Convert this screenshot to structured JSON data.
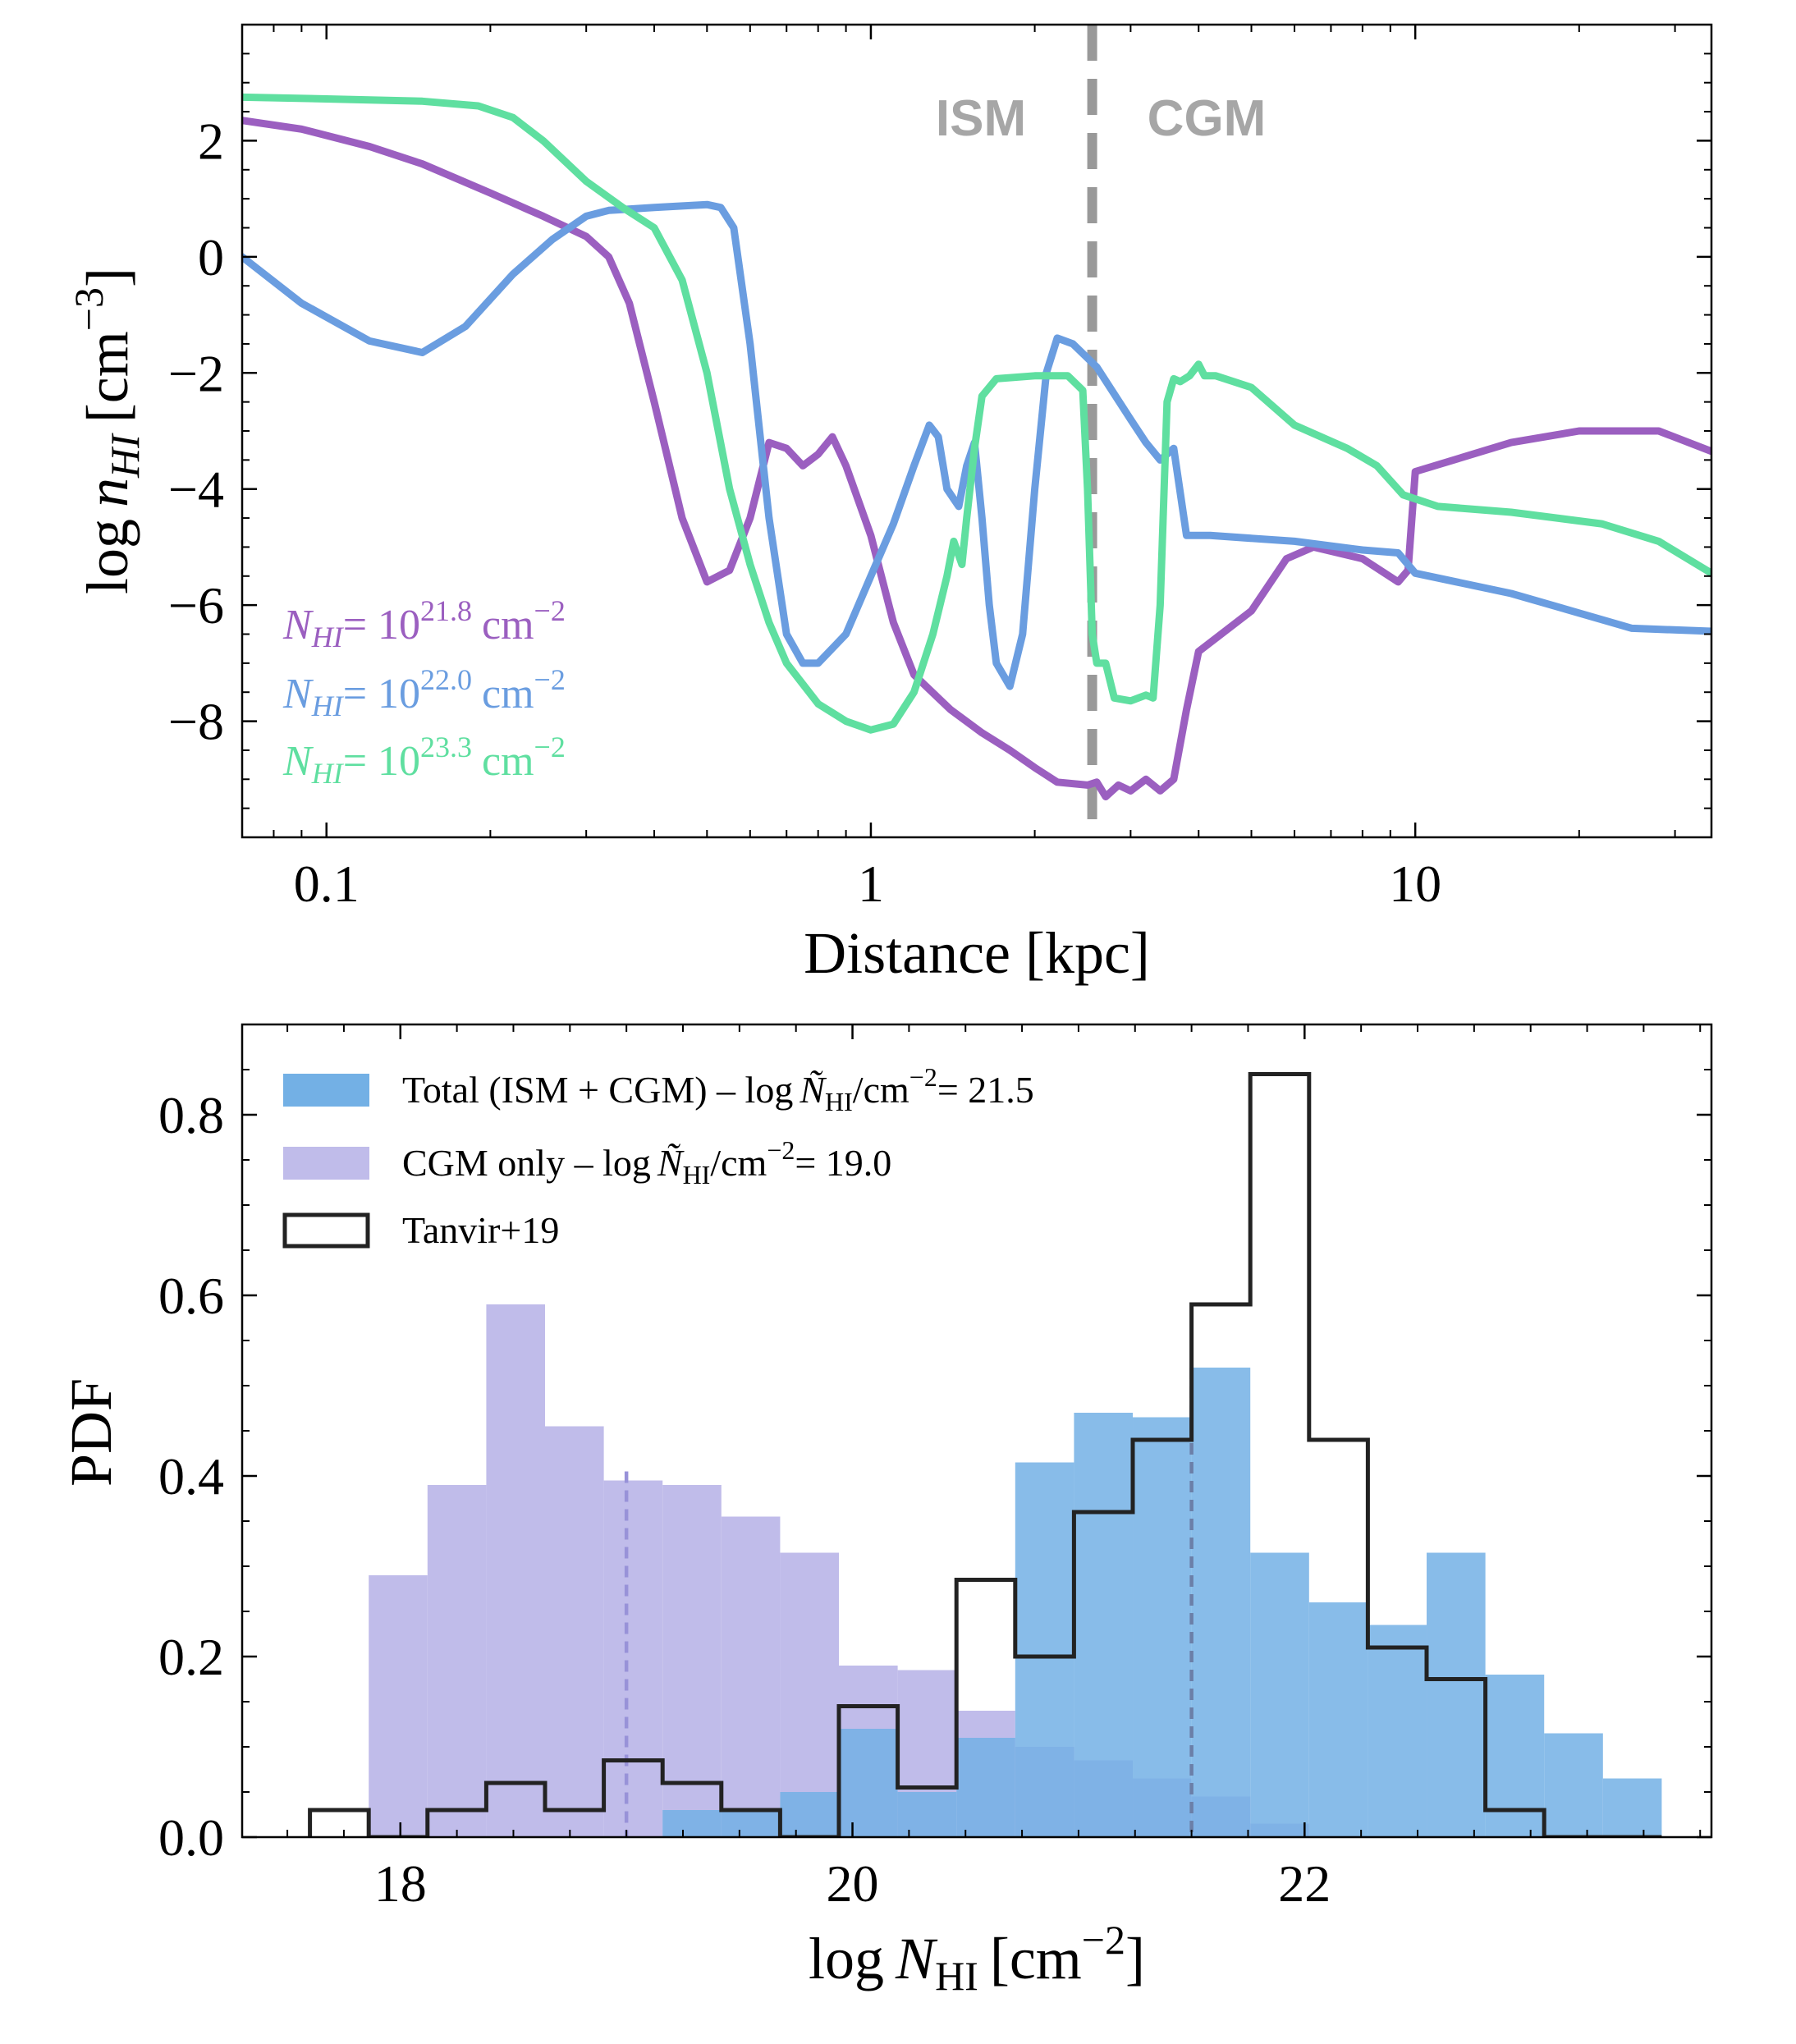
{
  "chart_data": [
    {
      "type": "line",
      "xscale": "log",
      "xlim": [
        0.07,
        35
      ],
      "ylim": [
        -10,
        4
      ],
      "xlabel": "Distance [kpc]",
      "ylabel_text": "log",
      "ylabel_var": "n",
      "ylabel_sub": "HI",
      "ylabel_unit": "[cm",
      "ylabel_exp": "−3",
      "ylabel_close": "]",
      "xticks": [
        0.1,
        1,
        10
      ],
      "xtick_labels": [
        "0.1",
        "1",
        "10"
      ],
      "yticks": [
        -8,
        -6,
        -4,
        -2,
        0,
        2
      ],
      "ytick_labels": [
        "−8",
        "−6",
        "−4",
        "−2",
        "0",
        "2"
      ],
      "divider": {
        "x": 2.55,
        "color": "#999999",
        "left_label": "ISM",
        "right_label": "CGM"
      },
      "legend_unit": "cm",
      "legend_unit_exp": "−2",
      "series": [
        {
          "name": "N_HI = 10^21.8 cm^-2",
          "var": "N",
          "sub": "HI",
          "eq": "= 10",
          "exp": "21.8",
          "color": "#9b5fc0",
          "points": [
            [
              0.07,
              2.35
            ],
            [
              0.09,
              2.2
            ],
            [
              0.12,
              1.9
            ],
            [
              0.15,
              1.6
            ],
            [
              0.2,
              1.1
            ],
            [
              0.25,
              0.7
            ],
            [
              0.3,
              0.35
            ],
            [
              0.33,
              0
            ],
            [
              0.36,
              -0.8
            ],
            [
              0.4,
              -2.5
            ],
            [
              0.45,
              -4.5
            ],
            [
              0.5,
              -5.6
            ],
            [
              0.55,
              -5.4
            ],
            [
              0.6,
              -4.5
            ],
            [
              0.65,
              -3.2
            ],
            [
              0.7,
              -3.3
            ],
            [
              0.75,
              -3.6
            ],
            [
              0.8,
              -3.4
            ],
            [
              0.85,
              -3.1
            ],
            [
              0.9,
              -3.6
            ],
            [
              1.0,
              -4.8
            ],
            [
              1.1,
              -6.3
            ],
            [
              1.2,
              -7.2
            ],
            [
              1.4,
              -7.8
            ],
            [
              1.6,
              -8.2
            ],
            [
              1.8,
              -8.5
            ],
            [
              2.0,
              -8.8
            ],
            [
              2.2,
              -9.05
            ],
            [
              2.5,
              -9.1
            ],
            [
              2.6,
              -9.05
            ],
            [
              2.7,
              -9.3
            ],
            [
              2.85,
              -9.1
            ],
            [
              3.0,
              -9.2
            ],
            [
              3.2,
              -9.0
            ],
            [
              3.4,
              -9.2
            ],
            [
              3.6,
              -9.0
            ],
            [
              3.8,
              -7.8
            ],
            [
              4.0,
              -6.8
            ],
            [
              5.0,
              -6.1
            ],
            [
              5.8,
              -5.2
            ],
            [
              6.5,
              -5.0
            ],
            [
              8.0,
              -5.2
            ],
            [
              9.3,
              -5.6
            ],
            [
              9.7,
              -5.4
            ],
            [
              10.0,
              -3.7
            ],
            [
              15.0,
              -3.2
            ],
            [
              20.0,
              -3.0
            ],
            [
              28.0,
              -3.0
            ],
            [
              35.0,
              -3.35
            ]
          ]
        },
        {
          "name": "N_HI = 10^22.0 cm^-2",
          "var": "N",
          "sub": "HI",
          "eq": "= 10",
          "exp": "22.0",
          "color": "#6a9de0",
          "points": [
            [
              0.07,
              0
            ],
            [
              0.09,
              -0.8
            ],
            [
              0.12,
              -1.45
            ],
            [
              0.15,
              -1.65
            ],
            [
              0.18,
              -1.2
            ],
            [
              0.22,
              -0.3
            ],
            [
              0.26,
              0.3
            ],
            [
              0.3,
              0.7
            ],
            [
              0.33,
              0.8
            ],
            [
              0.4,
              0.85
            ],
            [
              0.5,
              0.9
            ],
            [
              0.53,
              0.85
            ],
            [
              0.56,
              0.5
            ],
            [
              0.6,
              -1.5
            ],
            [
              0.65,
              -4.5
            ],
            [
              0.7,
              -6.5
            ],
            [
              0.75,
              -7
            ],
            [
              0.8,
              -7
            ],
            [
              0.9,
              -6.5
            ],
            [
              1.0,
              -5.5
            ],
            [
              1.1,
              -4.6
            ],
            [
              1.2,
              -3.6
            ],
            [
              1.28,
              -2.9
            ],
            [
              1.33,
              -3.1
            ],
            [
              1.38,
              -4.0
            ],
            [
              1.45,
              -4.3
            ],
            [
              1.5,
              -3.6
            ],
            [
              1.55,
              -3.2
            ],
            [
              1.6,
              -4.5
            ],
            [
              1.65,
              -6
            ],
            [
              1.7,
              -7
            ],
            [
              1.8,
              -7.4
            ],
            [
              1.9,
              -6.5
            ],
            [
              2.0,
              -4
            ],
            [
              2.1,
              -2.0
            ],
            [
              2.2,
              -1.4
            ],
            [
              2.35,
              -1.5
            ],
            [
              2.6,
              -1.9
            ],
            [
              3.0,
              -2.8
            ],
            [
              3.2,
              -3.2
            ],
            [
              3.4,
              -3.5
            ],
            [
              3.6,
              -3.3
            ],
            [
              3.8,
              -4.8
            ],
            [
              4.2,
              -4.8
            ],
            [
              6.0,
              -4.9
            ],
            [
              8.0,
              -5.05
            ],
            [
              9.3,
              -5.1
            ],
            [
              10.0,
              -5.45
            ],
            [
              15.0,
              -5.8
            ],
            [
              25.0,
              -6.4
            ],
            [
              35.0,
              -6.45
            ]
          ]
        },
        {
          "name": "N_HI = 10^23.3 cm^-2",
          "var": "N",
          "sub": "HI",
          "eq": "= 10",
          "exp": "23.3",
          "color": "#5fdfa0",
          "points": [
            [
              0.07,
              2.75
            ],
            [
              0.1,
              2.72
            ],
            [
              0.15,
              2.68
            ],
            [
              0.19,
              2.6
            ],
            [
              0.22,
              2.4
            ],
            [
              0.25,
              2.0
            ],
            [
              0.3,
              1.3
            ],
            [
              0.35,
              0.85
            ],
            [
              0.4,
              0.5
            ],
            [
              0.45,
              -0.4
            ],
            [
              0.5,
              -2.0
            ],
            [
              0.55,
              -4.0
            ],
            [
              0.6,
              -5.3
            ],
            [
              0.65,
              -6.3
            ],
            [
              0.7,
              -7.0
            ],
            [
              0.8,
              -7.7
            ],
            [
              0.9,
              -8.0
            ],
            [
              1.0,
              -8.15
            ],
            [
              1.1,
              -8.05
            ],
            [
              1.2,
              -7.5
            ],
            [
              1.3,
              -6.5
            ],
            [
              1.38,
              -5.5
            ],
            [
              1.42,
              -4.9
            ],
            [
              1.47,
              -5.3
            ],
            [
              1.5,
              -4.5
            ],
            [
              1.55,
              -3.3
            ],
            [
              1.6,
              -2.4
            ],
            [
              1.7,
              -2.1
            ],
            [
              2.0,
              -2.05
            ],
            [
              2.3,
              -2.05
            ],
            [
              2.45,
              -2.3
            ],
            [
              2.5,
              -4.0
            ],
            [
              2.55,
              -6.5
            ],
            [
              2.6,
              -7.0
            ],
            [
              2.7,
              -7.0
            ],
            [
              2.8,
              -7.6
            ],
            [
              3.0,
              -7.65
            ],
            [
              3.2,
              -7.55
            ],
            [
              3.3,
              -7.6
            ],
            [
              3.4,
              -6.0
            ],
            [
              3.5,
              -2.5
            ],
            [
              3.6,
              -2.1
            ],
            [
              3.7,
              -2.15
            ],
            [
              3.85,
              -2.05
            ],
            [
              4.0,
              -1.85
            ],
            [
              4.1,
              -2.05
            ],
            [
              4.3,
              -2.05
            ],
            [
              5.0,
              -2.25
            ],
            [
              6.0,
              -2.9
            ],
            [
              7.5,
              -3.3
            ],
            [
              8.5,
              -3.6
            ],
            [
              9.5,
              -4.1
            ],
            [
              11.0,
              -4.3
            ],
            [
              15.0,
              -4.4
            ],
            [
              22.0,
              -4.6
            ],
            [
              28.0,
              -4.9
            ],
            [
              35.0,
              -5.45
            ]
          ]
        }
      ]
    },
    {
      "type": "histogram",
      "xlim": [
        17.3,
        23.8
      ],
      "ylim": [
        0,
        0.9
      ],
      "xlabel_text": "log",
      "xlabel_var": "N",
      "xlabel_sub": "HI",
      "xlabel_unit": "[cm",
      "xlabel_exp": "−2",
      "xlabel_close": "]",
      "ylabel": "PDF",
      "xticks": [
        18,
        20,
        22
      ],
      "xtick_labels": [
        "18",
        "20",
        "22"
      ],
      "yticks": [
        0,
        0.2,
        0.4,
        0.6,
        0.8
      ],
      "ytick_labels": [
        "0.0",
        "0.2",
        "0.4",
        "0.6",
        "0.8"
      ],
      "bin_edges": [
        17.6,
        17.86,
        18.12,
        18.38,
        18.64,
        18.9,
        19.16,
        19.42,
        19.68,
        19.94,
        20.2,
        20.46,
        20.72,
        20.98,
        21.24,
        21.5,
        21.76,
        22.02,
        22.28,
        22.54,
        22.8,
        23.06,
        23.32,
        23.58
      ],
      "series": [
        {
          "name": "CGM only",
          "style": "filled",
          "color": "#c0bcea",
          "median": 19.0,
          "median_color": "#9892d8",
          "legend_main": "CGM only  –  log",
          "legend_var": "Ñ",
          "legend_sub": "HI",
          "legend_unit": "/cm",
          "legend_exp": "−2",
          "legend_value": "= 19.0",
          "values": [
            0,
            0.29,
            0.39,
            0.59,
            0.455,
            0.395,
            0.39,
            0.355,
            0.315,
            0.19,
            0.185,
            0.14,
            0.1,
            0.085,
            0.065,
            0.045,
            0.015,
            0,
            0,
            0,
            0,
            0,
            0
          ]
        },
        {
          "name": "Total (ISM + CGM)",
          "style": "filled",
          "color": "#73b0e5",
          "median": 21.5,
          "median_color": "#6b7fa8",
          "legend_main": "Total (ISM + CGM)  –  log",
          "legend_var": "Ñ",
          "legend_sub": "HI",
          "legend_unit": "/cm",
          "legend_exp": "−2",
          "legend_value": "= 21.5",
          "values": [
            0,
            0,
            0,
            0,
            0,
            0,
            0.03,
            0.03,
            0.05,
            0.12,
            0.05,
            0.11,
            0.415,
            0.47,
            0.465,
            0.52,
            0.315,
            0.26,
            0.235,
            0.315,
            0.18,
            0.115,
            0.065
          ]
        },
        {
          "name": "Tanvir+19",
          "style": "step",
          "color": "#222222",
          "legend_main": "Tanvir+19",
          "values": [
            0.03,
            0,
            0.03,
            0.06,
            0.03,
            0.085,
            0.06,
            0.03,
            0,
            0.145,
            0.055,
            0.285,
            0.2,
            0.36,
            0.44,
            0.59,
            0.845,
            0.44,
            0.21,
            0.175,
            0.03,
            0,
            0
          ]
        }
      ]
    }
  ]
}
